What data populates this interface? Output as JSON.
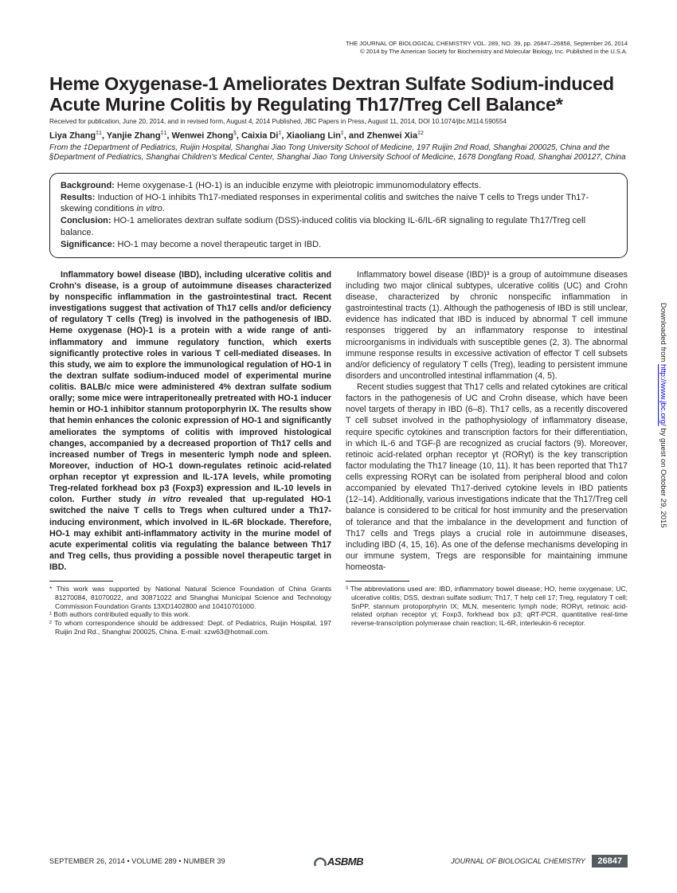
{
  "journalHeader": {
    "line1": "THE JOURNAL OF BIOLOGICAL CHEMISTRY  VOL. 289, NO. 39, pp. 26847–26858, September 26, 2014",
    "line2": "© 2014 by The American Society for Biochemistry and Molecular Biology, Inc.    Published in the U.S.A."
  },
  "title": "Heme Oxygenase-1 Ameliorates Dextran Sulfate Sodium-induced Acute Murine Colitis by Regulating Th17/Treg Cell Balance*",
  "received": "Received for publication, June 20, 2014, and in revised form, August 4, 2014  Published, JBC Papers in Press, August 11, 2014, DOI 10.1074/jbc.M114.590554",
  "authorsHtml": "Liya Zhang<sup>‡1</sup>, Yanjie Zhang<sup>‡1</sup>, Wenwei Zhong<sup>§</sup>, Caixia Di<sup>‡</sup>, Xiaoliang Lin<sup>‡</sup>, and Zhenwei Xia<sup>‡2</sup>",
  "affiliations": "From the ‡Department of Pediatrics, Ruijin Hospital, Shanghai Jiao Tong University School of Medicine, 197 Ruijin 2nd Road, Shanghai 200025, China and the §Department of Pediatrics, Shanghai Children's Medical Center, Shanghai Jiao Tong University School of Medicine, 1678 Dongfang Road, Shanghai 200127, China",
  "capsule": {
    "background": "Heme oxygenase-1 (HO-1) is an inducible enzyme with pleiotropic immunomodulatory effects.",
    "results": "Induction of HO-1 inhibits Th17-mediated responses in experimental colitis and switches the naive T cells to Tregs under Th17-skewing conditions in vitro.",
    "conclusion": "HO-1 ameliorates dextran sulfate sodium (DSS)-induced colitis via blocking IL-6/IL-6R signaling to regulate Th17/Treg cell balance.",
    "significance": "HO-1 may become a novel therapeutic target in IBD."
  },
  "abstract": "Inflammatory bowel disease (IBD), including ulcerative colitis and Crohn's disease, is a group of autoimmune diseases characterized by nonspecific inflammation in the gastrointestinal tract. Recent investigations suggest that activation of Th17 cells and/or deficiency of regulatory T cells (Treg) is involved in the pathogenesis of IBD. Heme oxygenase (HO)-1 is a protein with a wide range of anti-inflammatory and immune regulatory function, which exerts significantly protective roles in various T cell-mediated diseases. In this study, we aim to explore the immunological regulation of HO-1 in the dextran sulfate sodium-induced model of experimental murine colitis. BALB/c mice were administered 4% dextran sulfate sodium orally; some mice were intraperitoneally pretreated with HO-1 inducer hemin or HO-1 inhibitor stannum protoporphyrin IX. The results show that hemin enhances the colonic expression of HO-1 and significantly ameliorates the symptoms of colitis with improved histological changes, accompanied by a decreased proportion of Th17 cells and increased number of Tregs in mesenteric lymph node and spleen. Moreover, induction of HO-1 down-regulates retinoic acid-related orphan receptor γt expression and IL-17A levels, while promoting Treg-related forkhead box p3 (Foxp3) expression and IL-10 levels in colon. Further study in vitro revealed that up-regulated HO-1 switched the naive T cells to Tregs when cultured under a Th17-inducing environment, which involved in IL-6R blockade. Therefore, HO-1 may exhibit anti-inflammatory activity in the murine model of acute experimental colitis via regulating the balance between Th17 and Treg cells, thus providing a possible novel therapeutic target in IBD.",
  "col2p1": "Inflammatory bowel disease (IBD)³ is a group of autoimmune diseases including two major clinical subtypes, ulcerative colitis (UC) and Crohn disease, characterized by chronic nonspecific inflammation in gastrointestinal tracts (1). Although the pathogenesis of IBD is still unclear, evidence has indicated that IBD is induced by abnormal T cell immune responses triggered by an inflammatory response to intestinal microorganisms in individuals with susceptible genes (2, 3). The abnormal immune response results in excessive activation of effector T cell subsets and/or deficiency of regulatory T cells (Treg), leading to persistent immune disorders and uncontrolled intestinal inflammation (4, 5).",
  "col2p2": "Recent studies suggest that Th17 cells and related cytokines are critical factors in the pathogenesis of UC and Crohn disease, which have been novel targets of therapy in IBD (6–8). Th17 cells, as a recently discovered T cell subset involved in the pathophysiology of inflammatory disease, require specific cytokines and transcription factors for their differentiation, in which IL-6 and TGF-β are recognized as crucial factors (9). Moreover, retinoic acid-related orphan receptor γt (RORγt) is the key transcription factor modulating the Th17 lineage (10, 11). It has been reported that Th17 cells expressing RORγt can be isolated from peripheral blood and colon accompanied by elevated Th17-derived cytokine levels in IBD patients (12–14). Additionally, various investigations indicate that the Th17/Treg cell balance is considered to be critical for host immunity and the preservation of tolerance and that the imbalance in the development and function of Th17 cells and Tregs plays a crucial role in autoimmune diseases, including IBD (4, 15, 16). As one of the defense mechanisms developing in our immune system, Tregs are responsible for maintaining immune homeosta-",
  "footnotes": {
    "left1": "* This work was supported by National Natural Science Foundation of China Grants 81270084, 81070022, and 30871022 and Shanghai Municipal Science and Technology Commission Foundation Grants 13XD1402800 and 10410701000.",
    "left2": "¹ Both authors contributed equally to this work.",
    "left3": "² To whom correspondence should be addressed: Dept. of Pediatrics, Ruijin Hospital, 197 Ruijin 2nd Rd., Shanghai 200025, China. E-mail: xzw63@hotmail.com.",
    "right": "³ The abbreviations used are: IBD, inflammatory bowel disease; HO, heme oxygenase; UC, ulcerative colitis; DSS, dextran sulfate sodium; Th17, T help cell 17; Treg, regulatory T cell; SnPP, stannum protoporphyrin IX; MLN, mesenteric lymph node; RORγt, retinoic acid-related orphan receptor γt; Foxp3, forkhead box p3; qRT-PCR, quantitative real-time reverse-transcription polymerase chain reaction; IL-6R, interleukin-6 receptor."
  },
  "footer": {
    "left": "SEPTEMBER 26, 2014 • VOLUME 289 • NUMBER 39",
    "logo": "ASBMB",
    "journal": "JOURNAL OF BIOLOGICAL CHEMISTRY",
    "page": "26847"
  },
  "sidebar": {
    "pre": "Downloaded from ",
    "link": "http://www.jbc.org/",
    "post": " by guest on October 29, 2015"
  }
}
